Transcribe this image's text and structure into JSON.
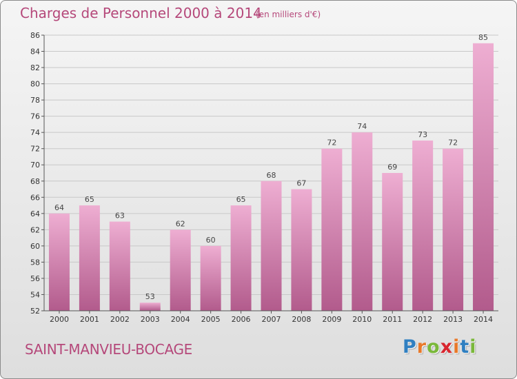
{
  "title": "Charges de Personnel 2000 à 2014",
  "subtitle": "(en milliers d'€)",
  "commune": "SAINT-MANVIEU-BOCAGE",
  "logo": {
    "letters": [
      "P",
      "r",
      "o",
      "x",
      "i",
      "t",
      "i"
    ],
    "colors": [
      "#2f7fc1",
      "#e8792a",
      "#7ab83a",
      "#d8262f",
      "#e8792a",
      "#2f7fc1",
      "#7ab83a"
    ]
  },
  "colors": {
    "title": "#b5487a",
    "bar_top": "#eeaed2",
    "bar_bottom": "#b25b8c",
    "axis": "#555555",
    "grid": "#c8c8c8"
  },
  "chart_data": {
    "type": "bar",
    "categories": [
      "2000",
      "2001",
      "2002",
      "2003",
      "2004",
      "2005",
      "2006",
      "2007",
      "2008",
      "2009",
      "2010",
      "2011",
      "2012",
      "2013",
      "2014"
    ],
    "values": [
      64,
      65,
      63,
      53,
      62,
      60,
      65,
      68,
      67,
      72,
      74,
      69,
      73,
      72,
      85
    ],
    "title": "Charges de Personnel 2000 à 2014",
    "ylim": [
      52,
      86
    ],
    "yticks": [
      52,
      54,
      56,
      58,
      60,
      62,
      64,
      66,
      68,
      70,
      72,
      74,
      76,
      78,
      80,
      82,
      84,
      86
    ],
    "grid": true,
    "data_labels": true
  }
}
